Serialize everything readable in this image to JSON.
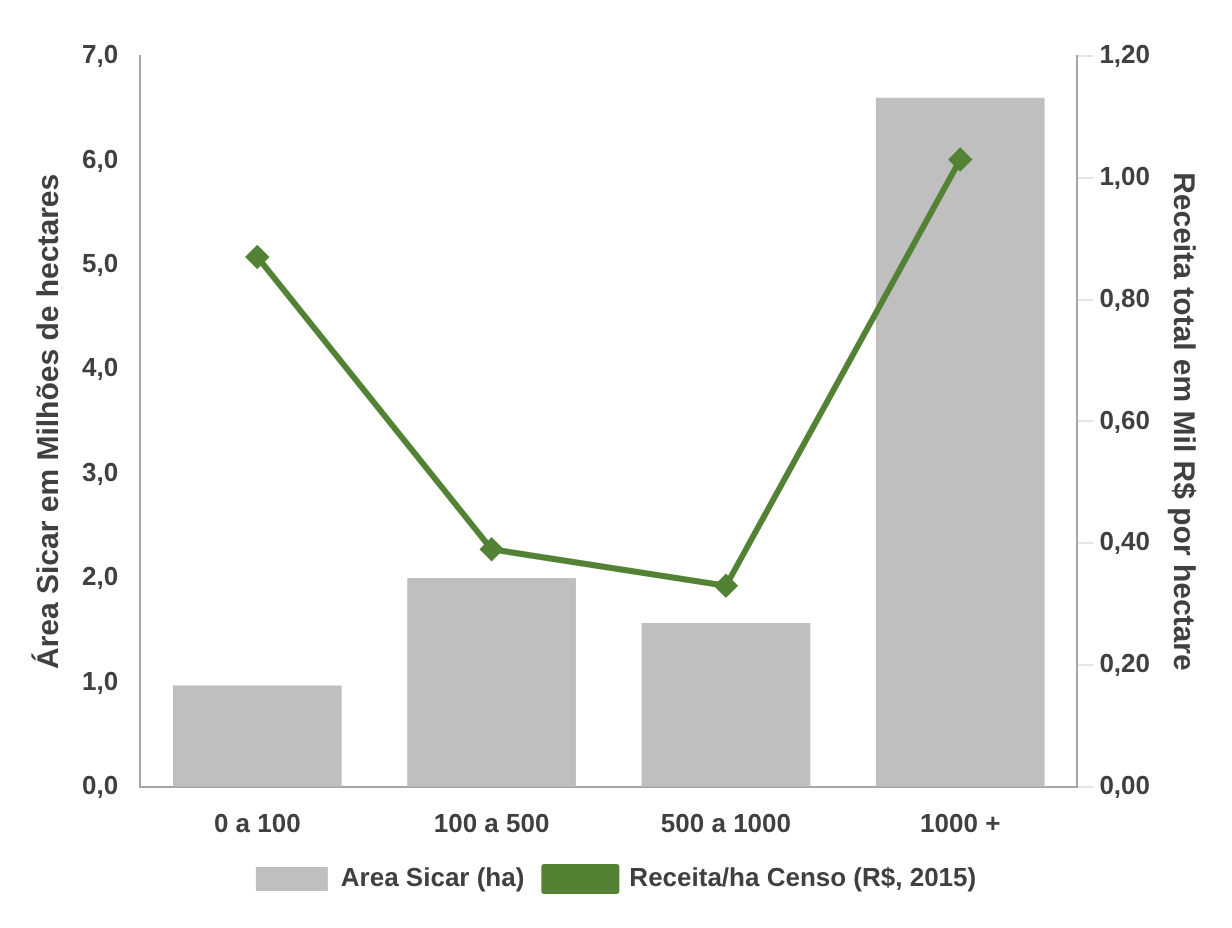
{
  "chart_data": {
    "type": "bar",
    "categories": [
      "0 a 100",
      "100 a 500",
      "500 a 1000",
      "1000 +"
    ],
    "series": [
      {
        "name": "Area Sicar (ha)",
        "color": "#bfbfbf",
        "values": [
          0.97,
          2.0,
          1.57,
          6.6
        ]
      },
      {
        "name": "Receita/ha Censo (R$, 2015)",
        "type": "line",
        "axis": "y2",
        "color": "#548235",
        "marker": "diamond",
        "values": [
          0.87,
          0.39,
          0.33,
          1.03
        ]
      }
    ],
    "ylabel": "Área Sicar em Milhões de hectares",
    "y2label": "Receita total em Mil R$ por hectare",
    "ylim": [
      0,
      7
    ],
    "yticks": [
      {
        "value": 0,
        "label": "0,0"
      },
      {
        "value": 1,
        "label": "1,0"
      },
      {
        "value": 2,
        "label": "2,0"
      },
      {
        "value": 3,
        "label": "3,0"
      },
      {
        "value": 4,
        "label": "4,0"
      },
      {
        "value": 5,
        "label": "5,0"
      },
      {
        "value": 6,
        "label": "6,0"
      },
      {
        "value": 7,
        "label": "7,0"
      }
    ],
    "y2lim": [
      0,
      1.2
    ],
    "y2ticks": [
      {
        "value": 0,
        "label": "0,00"
      },
      {
        "value": 0.2,
        "label": "0,20"
      },
      {
        "value": 0.4,
        "label": "0,40"
      },
      {
        "value": 0.6,
        "label": "0,60"
      },
      {
        "value": 0.8,
        "label": "0,80"
      },
      {
        "value": 1,
        "label": "1,00"
      },
      {
        "value": 1.2,
        "label": "1,20"
      }
    ],
    "grid": false,
    "legend": "bottom"
  }
}
